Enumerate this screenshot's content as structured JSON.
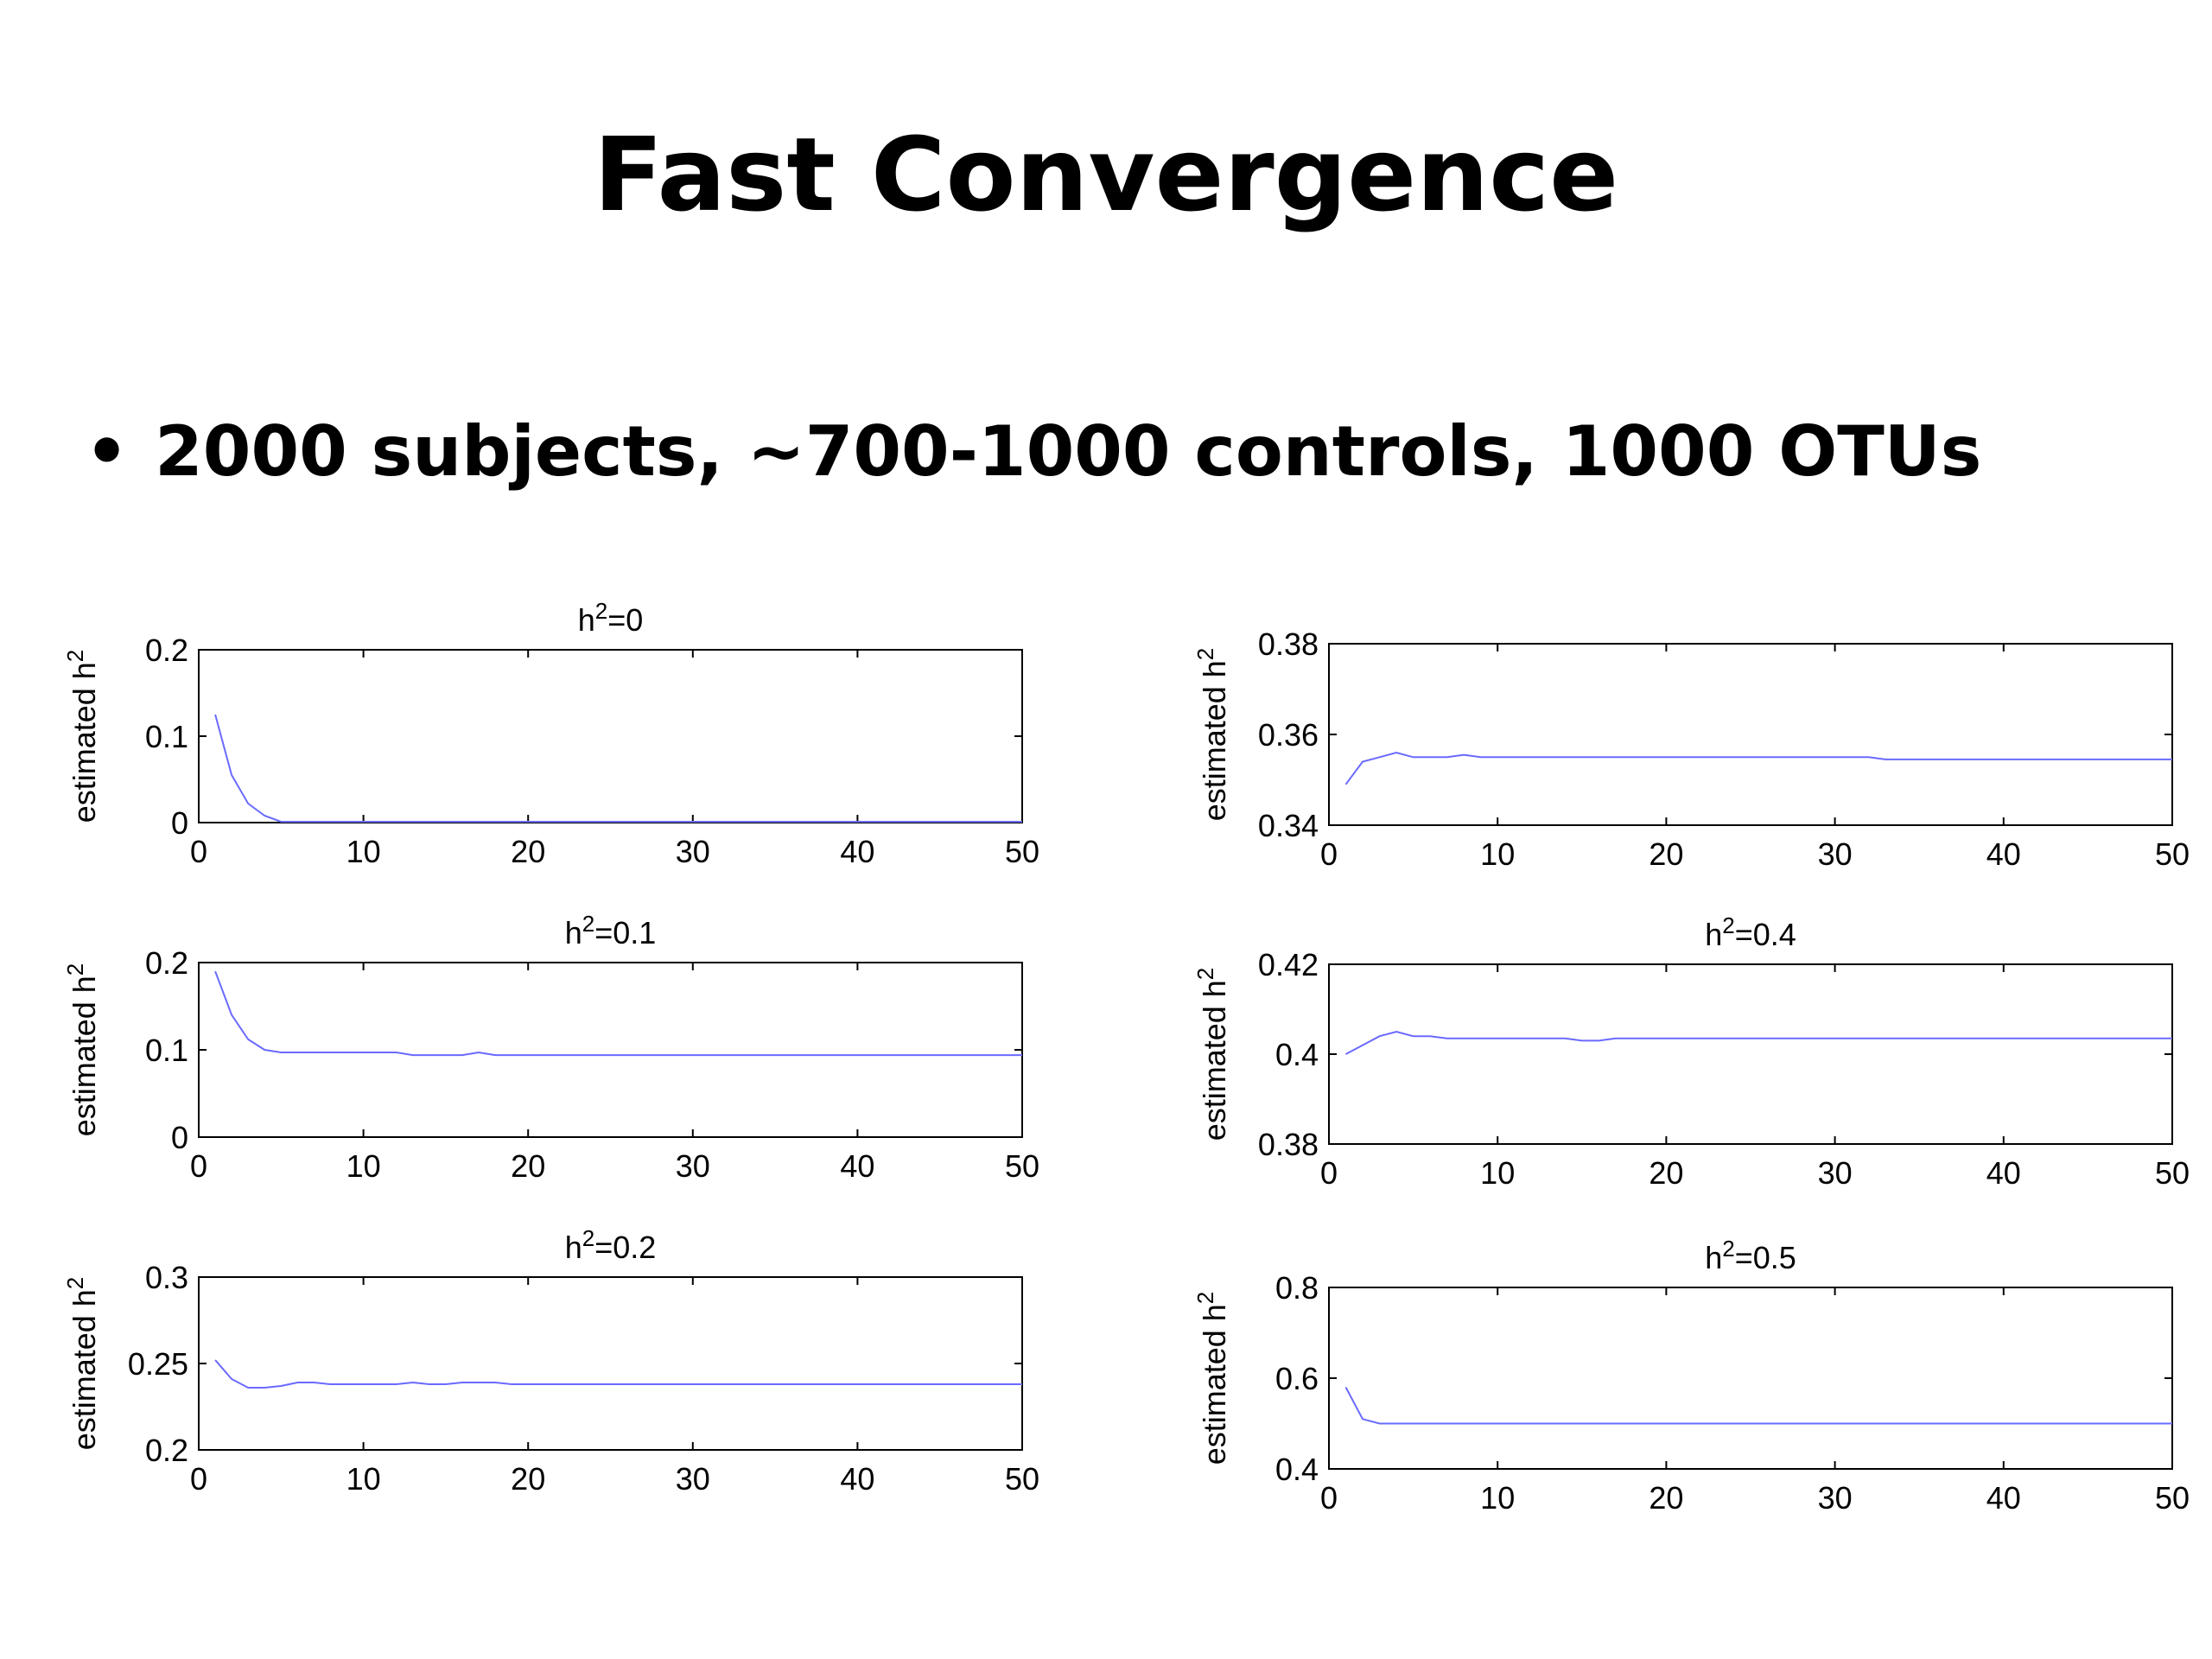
{
  "slide": {
    "title": "Fast Convergence",
    "bullet": "2000 subjects, ~700-1000 controls, 1000 OTUs"
  },
  "colors": {
    "line": "#6a6aff",
    "axis": "#000000"
  },
  "chart_data": [
    {
      "type": "line",
      "title": "h2=0",
      "title_base": "h",
      "title_sup": "2",
      "title_rest": "=0",
      "ylabel": "estimated h2",
      "xlim": [
        0,
        50
      ],
      "ylim": [
        0,
        0.2
      ],
      "xticks": [
        0,
        10,
        20,
        30,
        40,
        50
      ],
      "yticks": [
        0,
        0.1,
        0.2
      ],
      "x": [
        1,
        2,
        3,
        4,
        5,
        6,
        10,
        20,
        30,
        40,
        50
      ],
      "y": [
        0.125,
        0.055,
        0.022,
        0.008,
        0.001,
        0.001,
        0.001,
        0.001,
        0.001,
        0.001,
        0.001
      ]
    },
    {
      "type": "line",
      "title": "h2=0.1",
      "title_base": "h",
      "title_sup": "2",
      "title_rest": "=0.1",
      "ylabel": "estimated h2",
      "xlim": [
        0,
        50
      ],
      "ylim": [
        0,
        0.2
      ],
      "xticks": [
        0,
        10,
        20,
        30,
        40,
        50
      ],
      "yticks": [
        0,
        0.1,
        0.2
      ],
      "x": [
        1,
        2,
        3,
        4,
        5,
        6,
        8,
        10,
        12,
        13,
        15,
        16,
        17,
        18,
        20,
        30,
        40,
        50
      ],
      "y": [
        0.19,
        0.14,
        0.112,
        0.1,
        0.097,
        0.097,
        0.097,
        0.097,
        0.097,
        0.094,
        0.094,
        0.094,
        0.097,
        0.094,
        0.094,
        0.094,
        0.094,
        0.094
      ]
    },
    {
      "type": "line",
      "title": "h2=0.2",
      "title_base": "h",
      "title_sup": "2",
      "title_rest": "=0.2",
      "ylabel": "estimated h2",
      "xlim": [
        0,
        50
      ],
      "ylim": [
        0.2,
        0.3
      ],
      "xticks": [
        0,
        10,
        20,
        30,
        40,
        50
      ],
      "yticks": [
        0.2,
        0.25,
        0.3
      ],
      "x": [
        1,
        2,
        3,
        4,
        5,
        6,
        7,
        8,
        10,
        12,
        13,
        14,
        15,
        16,
        17,
        18,
        19,
        20,
        30,
        40,
        50
      ],
      "y": [
        0.252,
        0.241,
        0.236,
        0.236,
        0.237,
        0.239,
        0.239,
        0.238,
        0.238,
        0.238,
        0.239,
        0.238,
        0.238,
        0.239,
        0.239,
        0.239,
        0.238,
        0.238,
        0.238,
        0.238,
        0.238
      ]
    },
    {
      "type": "line",
      "title": "",
      "title_base": "",
      "title_sup": "",
      "title_rest": "",
      "ylabel": "estimated h2",
      "xlim": [
        0,
        50
      ],
      "ylim": [
        0.34,
        0.38
      ],
      "xticks": [
        0,
        10,
        20,
        30,
        40,
        50
      ],
      "yticks": [
        0.34,
        0.36,
        0.38
      ],
      "x": [
        1,
        2,
        3,
        4,
        5,
        6,
        7,
        8,
        9,
        10,
        20,
        30,
        32,
        33,
        40,
        50
      ],
      "y": [
        0.349,
        0.354,
        0.355,
        0.356,
        0.355,
        0.355,
        0.355,
        0.3555,
        0.355,
        0.355,
        0.355,
        0.355,
        0.355,
        0.3545,
        0.3545,
        0.3545
      ]
    },
    {
      "type": "line",
      "title": "h2=0.4",
      "title_base": "h",
      "title_sup": "2",
      "title_rest": "=0.4",
      "ylabel": "estimated h2",
      "xlim": [
        0,
        50
      ],
      "ylim": [
        0.38,
        0.42
      ],
      "xticks": [
        0,
        10,
        20,
        30,
        40,
        50
      ],
      "yticks": [
        0.38,
        0.4,
        0.42
      ],
      "x": [
        1,
        2,
        3,
        4,
        5,
        6,
        7,
        10,
        14,
        15,
        16,
        17,
        20,
        30,
        40,
        50
      ],
      "y": [
        0.4,
        0.402,
        0.404,
        0.405,
        0.404,
        0.404,
        0.4035,
        0.4035,
        0.4035,
        0.403,
        0.403,
        0.4035,
        0.4035,
        0.4035,
        0.4035,
        0.4035
      ]
    },
    {
      "type": "line",
      "title": "h2=0.5",
      "title_base": "h",
      "title_sup": "2",
      "title_rest": "=0.5",
      "ylabel": "estimated h2",
      "xlim": [
        0,
        50
      ],
      "ylim": [
        0.4,
        0.8
      ],
      "xticks": [
        0,
        10,
        20,
        30,
        40,
        50
      ],
      "yticks": [
        0.4,
        0.6,
        0.8
      ],
      "x": [
        1,
        2,
        3,
        4,
        5,
        10,
        20,
        30,
        40,
        50
      ],
      "y": [
        0.58,
        0.51,
        0.5,
        0.5,
        0.5,
        0.5,
        0.5,
        0.5,
        0.5,
        0.5
      ]
    }
  ]
}
